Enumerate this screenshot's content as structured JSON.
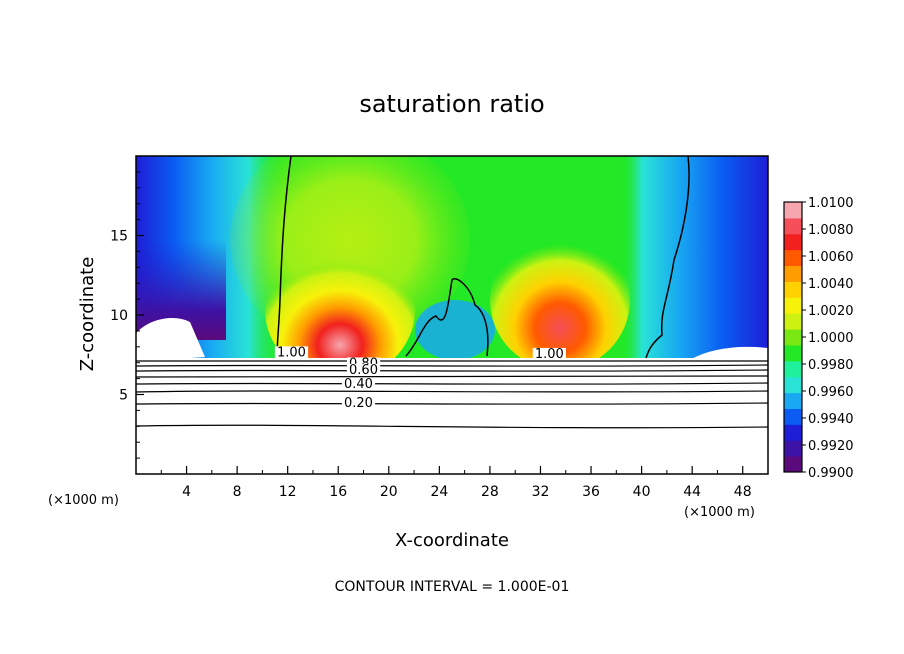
{
  "chart_data": {
    "type": "heatmap",
    "title": "saturation ratio",
    "xlabel": "X-coordinate",
    "ylabel": "Z-coordinate",
    "x_unit_left": "(×1000 m)",
    "x_unit_right": "(×1000 m)",
    "xlim": [
      0,
      50
    ],
    "ylim": [
      0,
      20
    ],
    "x_ticks": [
      4,
      8,
      12,
      16,
      20,
      24,
      28,
      32,
      36,
      40,
      44,
      48
    ],
    "y_ticks": [
      5,
      10,
      15
    ],
    "colorbar": {
      "min": 0.99,
      "max": 1.01,
      "labels": [
        "1.0100",
        "1.0080",
        "1.0060",
        "1.0040",
        "1.0020",
        "1.0000",
        "0.9980",
        "0.9960",
        "0.9940",
        "0.9920",
        "0.9900"
      ],
      "colors": [
        "#5a0a7a",
        "#3d12a6",
        "#1e1ed6",
        "#0a5cf2",
        "#19a8f2",
        "#29e3d6",
        "#1ef09c",
        "#22e825",
        "#7ae812",
        "#cdf212",
        "#f7f20a",
        "#ffd100",
        "#ff9d00",
        "#ff5a00",
        "#f2201e",
        "#f5505a",
        "#f5a6ae"
      ]
    },
    "line_contour_labels": [
      {
        "text": "1.00",
        "x": 12.3,
        "z": 7.4
      },
      {
        "text": "0.80",
        "x": 18.0,
        "z": 6.7
      },
      {
        "text": "0.60",
        "x": 18.0,
        "z": 6.3
      },
      {
        "text": "0.40",
        "x": 17.6,
        "z": 5.4
      },
      {
        "text": "0.20",
        "x": 17.6,
        "z": 4.2
      },
      {
        "text": "1.00",
        "x": 32.7,
        "z": 7.3
      }
    ],
    "contour_interval_text": "CONTOUR INTERVAL = 1.000E-01"
  }
}
